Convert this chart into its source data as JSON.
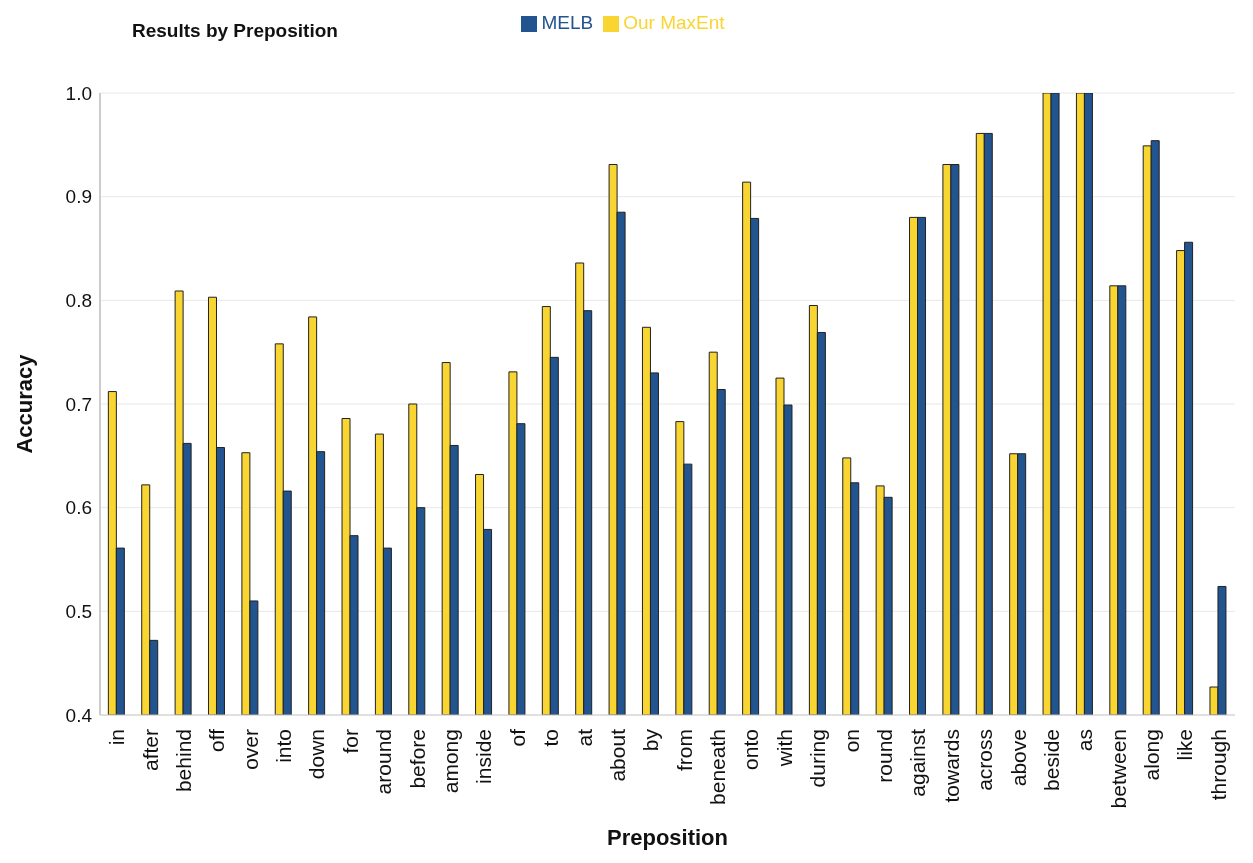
{
  "chart_data": {
    "type": "bar",
    "title": "Results by Preposition",
    "xlabel": "Preposition",
    "ylabel": "Accuracy",
    "categories": [
      "in",
      "after",
      "behind",
      "off",
      "over",
      "into",
      "down",
      "for",
      "around",
      "before",
      "among",
      "inside",
      "of",
      "to",
      "at",
      "about",
      "by",
      "from",
      "beneath",
      "onto",
      "with",
      "during",
      "on",
      "round",
      "against",
      "towards",
      "across",
      "above",
      "beside",
      "as",
      "between",
      "along",
      "like",
      "through"
    ],
    "series": [
      {
        "name": "Our MaxEnt",
        "color": "#f9d532",
        "values": [
          0.712,
          0.622,
          0.809,
          0.803,
          0.653,
          0.758,
          0.784,
          0.686,
          0.671,
          0.7,
          0.74,
          0.632,
          0.731,
          0.794,
          0.836,
          0.931,
          0.774,
          0.683,
          0.75,
          0.914,
          0.725,
          0.795,
          0.648,
          0.621,
          0.88,
          0.931,
          0.961,
          0.652,
          1.0,
          1.0,
          0.814,
          0.949,
          0.848,
          0.427
        ]
      },
      {
        "name": "MELB",
        "color": "#22548f",
        "values": [
          0.561,
          0.472,
          0.662,
          0.658,
          0.51,
          0.616,
          0.654,
          0.573,
          0.561,
          0.6,
          0.66,
          0.579,
          0.681,
          0.745,
          0.79,
          0.885,
          0.73,
          0.642,
          0.714,
          0.879,
          0.699,
          0.769,
          0.624,
          0.61,
          0.88,
          0.931,
          0.961,
          0.652,
          1.0,
          1.0,
          0.814,
          0.954,
          0.856,
          0.524
        ]
      }
    ],
    "ylim": [
      0.4,
      1.0
    ],
    "yticks": [
      {
        "value": 0.4,
        "label": "0.4"
      },
      {
        "value": 0.5,
        "label": "0.5"
      },
      {
        "value": 0.6,
        "label": "0.6"
      },
      {
        "value": 0.7,
        "label": "0.7"
      },
      {
        "value": 0.8,
        "label": "0.8"
      },
      {
        "value": 0.9,
        "label": "0.9"
      },
      {
        "value": 1.0,
        "label": "1.0"
      }
    ],
    "grid": "y",
    "legend": "top"
  }
}
